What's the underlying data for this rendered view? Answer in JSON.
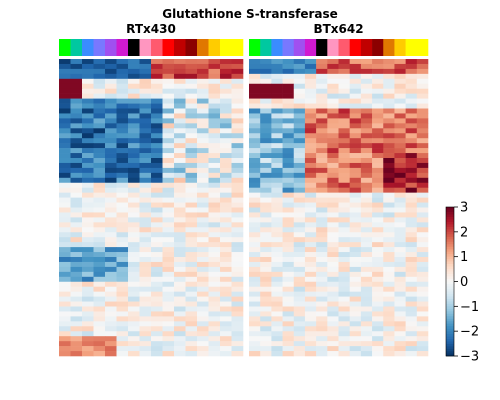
{
  "chart_data": {
    "type": "heatmap",
    "title": "Glutathione S-transferase",
    "panels": [
      {
        "title": "RTx430",
        "columns": 16,
        "rows": 60,
        "column_colors": [
          "#00ff00",
          "#00c8a0",
          "#3a8cff",
          "#7878ff",
          "#a050f0",
          "#d01ad0",
          "#000000",
          "#ff96c0",
          "#ff5a6e",
          "#ff0000",
          "#c00000",
          "#8b0000",
          "#e07800",
          "#ffcc00",
          "#ffff00",
          "#ffff00"
        ]
      },
      {
        "title": "BTx642",
        "columns": 16,
        "rows": 60,
        "column_colors": [
          "#00ff00",
          "#00c8a0",
          "#3a8cff",
          "#7878ff",
          "#a050f0",
          "#d01ad0",
          "#000000",
          "#ff96c0",
          "#ff5a6e",
          "#ff0000",
          "#c00000",
          "#8b0000",
          "#e07800",
          "#ffcc00",
          "#ffff00",
          "#ffff00"
        ]
      }
    ],
    "colorbar": {
      "colormap": "RdBu_r",
      "range": [
        -3,
        3
      ],
      "ticks": [
        3,
        2,
        1,
        0,
        -1,
        -2,
        -3
      ],
      "tick_labels": [
        "3",
        "2",
        "1",
        "0",
        "−1",
        "−2",
        "−3"
      ]
    }
  }
}
